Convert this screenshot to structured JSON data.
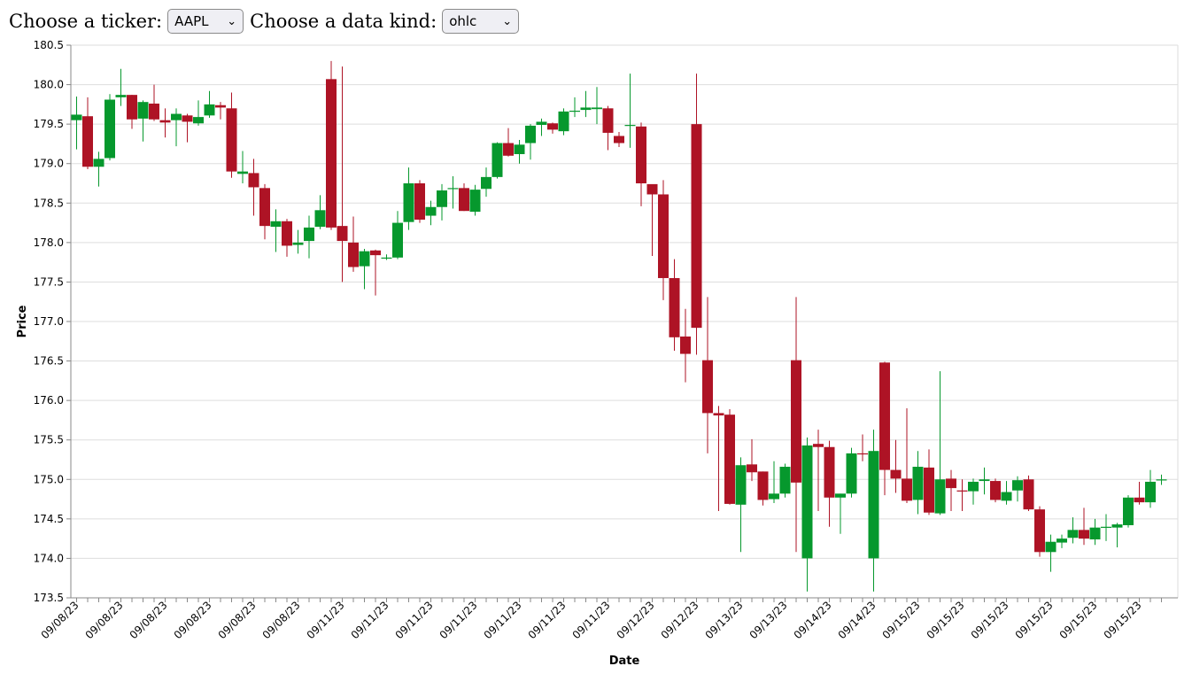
{
  "controls": {
    "ticker_label": "Choose a ticker:",
    "ticker_value": "AAPL",
    "kind_label": "Choose a data kind:",
    "kind_value": "ohlc"
  },
  "colors": {
    "up": "#06982d",
    "down": "#ae1325",
    "grid": "#dddddd",
    "axis": "#888888"
  },
  "chart_data": {
    "type": "candlestick",
    "xlabel": "Date",
    "ylabel": "Price",
    "ylim": [
      173.5,
      180.5
    ],
    "yticks": [
      "173.5",
      "174.0",
      "174.5",
      "175.0",
      "175.5",
      "176.0",
      "176.5",
      "177.0",
      "177.5",
      "178.0",
      "178.5",
      "179.0",
      "179.5",
      "180.0",
      "180.5"
    ],
    "xtick_labels": [
      "09/08/23",
      "09/08/23",
      "09/08/23",
      "09/08/23",
      "09/08/23",
      "09/08/23",
      "09/11/23",
      "09/11/23",
      "09/11/23",
      "09/11/23",
      "09/11/23",
      "09/11/23",
      "09/11/23",
      "09/12/23",
      "09/12/23",
      "09/13/23",
      "09/13/23",
      "09/14/23",
      "09/14/23",
      "09/15/23",
      "09/15/23",
      "09/15/23",
      "09/15/23",
      "09/15/23",
      "09/15/23"
    ],
    "grid": true,
    "ohlc": [
      [
        179.55,
        179.85,
        179.18,
        179.62
      ],
      [
        179.6,
        179.84,
        178.93,
        178.96
      ],
      [
        178.96,
        179.15,
        178.71,
        179.06
      ],
      [
        179.07,
        179.88,
        179.04,
        179.81
      ],
      [
        179.84,
        180.2,
        179.73,
        179.87
      ],
      [
        179.87,
        179.87,
        179.44,
        179.56
      ],
      [
        179.57,
        179.8,
        179.28,
        179.78
      ],
      [
        179.76,
        180.0,
        179.54,
        179.56
      ],
      [
        179.55,
        179.7,
        179.33,
        179.52
      ],
      [
        179.55,
        179.7,
        179.22,
        179.63
      ],
      [
        179.61,
        179.63,
        179.27,
        179.53
      ],
      [
        179.51,
        179.8,
        179.48,
        179.59
      ],
      [
        179.61,
        179.92,
        179.58,
        179.75
      ],
      [
        179.74,
        179.78,
        179.56,
        179.71
      ],
      [
        179.7,
        179.9,
        178.82,
        178.9
      ],
      [
        178.87,
        179.16,
        178.75,
        178.9
      ],
      [
        178.88,
        179.06,
        178.34,
        178.7
      ],
      [
        178.69,
        178.74,
        178.04,
        178.21
      ],
      [
        178.2,
        178.42,
        177.88,
        178.27
      ],
      [
        178.27,
        178.3,
        177.82,
        177.96
      ],
      [
        177.97,
        178.16,
        177.86,
        178.0
      ],
      [
        178.02,
        178.34,
        177.8,
        178.19
      ],
      [
        178.2,
        178.6,
        178.17,
        178.41
      ],
      [
        180.07,
        180.3,
        178.16,
        178.19
      ],
      [
        178.21,
        180.23,
        177.5,
        178.02
      ],
      [
        178.0,
        178.33,
        177.63,
        177.69
      ],
      [
        177.7,
        177.92,
        177.41,
        177.89
      ],
      [
        177.9,
        177.91,
        177.33,
        177.84
      ],
      [
        177.8,
        177.85,
        177.78,
        177.81
      ],
      [
        177.81,
        178.4,
        177.79,
        178.25
      ],
      [
        178.26,
        178.95,
        178.16,
        178.75
      ],
      [
        178.75,
        178.79,
        178.25,
        178.29
      ],
      [
        178.34,
        178.53,
        178.22,
        178.45
      ],
      [
        178.45,
        178.74,
        178.28,
        178.66
      ],
      [
        178.68,
        178.84,
        178.43,
        178.69
      ],
      [
        178.69,
        178.75,
        178.4,
        178.4
      ],
      [
        178.39,
        178.73,
        178.34,
        178.67
      ],
      [
        178.68,
        178.95,
        178.58,
        178.83
      ],
      [
        178.83,
        179.27,
        178.81,
        179.26
      ],
      [
        179.26,
        179.45,
        179.09,
        179.1
      ],
      [
        179.12,
        179.3,
        179.0,
        179.24
      ],
      [
        179.26,
        179.5,
        179.05,
        179.48
      ],
      [
        179.49,
        179.57,
        179.35,
        179.53
      ],
      [
        179.51,
        179.52,
        179.38,
        179.43
      ],
      [
        179.41,
        179.7,
        179.36,
        179.66
      ],
      [
        179.66,
        179.84,
        179.59,
        179.67
      ],
      [
        179.68,
        179.92,
        179.59,
        179.71
      ],
      [
        179.69,
        179.97,
        179.5,
        179.71
      ],
      [
        179.7,
        179.73,
        179.17,
        179.39
      ],
      [
        179.35,
        179.4,
        179.21,
        179.26
      ],
      [
        179.48,
        180.14,
        179.2,
        179.49
      ],
      [
        179.47,
        179.52,
        178.46,
        178.75
      ],
      [
        178.74,
        178.7,
        177.83,
        178.61
      ],
      [
        178.61,
        178.79,
        177.27,
        177.55
      ],
      [
        177.55,
        177.79,
        176.63,
        176.8
      ],
      [
        176.81,
        177.16,
        176.23,
        176.59
      ],
      [
        179.5,
        180.14,
        176.58,
        176.92
      ],
      [
        176.51,
        177.31,
        175.33,
        175.84
      ],
      [
        175.84,
        175.93,
        174.6,
        175.81
      ],
      [
        175.82,
        175.89,
        174.68,
        174.69
      ],
      [
        174.68,
        175.28,
        174.08,
        175.18
      ],
      [
        175.19,
        175.51,
        174.98,
        175.09
      ],
      [
        175.1,
        175.1,
        174.67,
        174.74
      ],
      [
        174.75,
        175.23,
        174.7,
        174.82
      ],
      [
        174.82,
        175.2,
        174.77,
        175.16
      ],
      [
        176.51,
        177.31,
        174.08,
        174.96
      ],
      [
        174.0,
        175.53,
        173.58,
        175.43
      ],
      [
        175.45,
        175.63,
        174.6,
        175.41
      ],
      [
        175.41,
        175.49,
        174.4,
        174.77
      ],
      [
        174.77,
        174.82,
        174.31,
        174.82
      ],
      [
        174.82,
        175.4,
        174.77,
        175.33
      ],
      [
        175.33,
        175.57,
        175.23,
        175.32
      ],
      [
        174.0,
        175.63,
        173.58,
        175.36
      ],
      [
        176.48,
        176.49,
        174.8,
        175.12
      ],
      [
        175.12,
        175.5,
        174.83,
        175.01
      ],
      [
        175.01,
        175.9,
        174.7,
        174.73
      ],
      [
        174.74,
        175.36,
        174.56,
        175.16
      ],
      [
        175.15,
        175.38,
        174.55,
        174.58
      ],
      [
        174.57,
        176.37,
        174.55,
        175.0
      ],
      [
        175.01,
        175.12,
        174.6,
        174.89
      ],
      [
        174.86,
        175.0,
        174.6,
        174.85
      ],
      [
        174.85,
        175.01,
        174.68,
        174.97
      ],
      [
        174.98,
        175.15,
        174.81,
        175.0
      ],
      [
        174.98,
        175.01,
        174.71,
        174.74
      ],
      [
        174.73,
        174.98,
        174.68,
        174.84
      ],
      [
        174.86,
        175.04,
        174.72,
        174.99
      ],
      [
        175.0,
        175.05,
        174.6,
        174.62
      ],
      [
        174.62,
        174.66,
        174.02,
        174.08
      ],
      [
        174.08,
        174.3,
        173.83,
        174.21
      ],
      [
        174.2,
        174.3,
        174.13,
        174.25
      ],
      [
        174.26,
        174.52,
        174.19,
        174.36
      ],
      [
        174.36,
        174.64,
        174.17,
        174.25
      ],
      [
        174.24,
        174.5,
        174.17,
        174.39
      ],
      [
        174.4,
        174.56,
        174.22,
        174.4
      ],
      [
        174.39,
        174.45,
        174.14,
        174.43
      ],
      [
        174.42,
        174.8,
        174.39,
        174.77
      ],
      [
        174.77,
        174.97,
        174.68,
        174.71
      ],
      [
        174.71,
        175.12,
        174.64,
        174.97
      ],
      [
        175.0,
        175.06,
        174.93,
        175.0
      ]
    ]
  }
}
